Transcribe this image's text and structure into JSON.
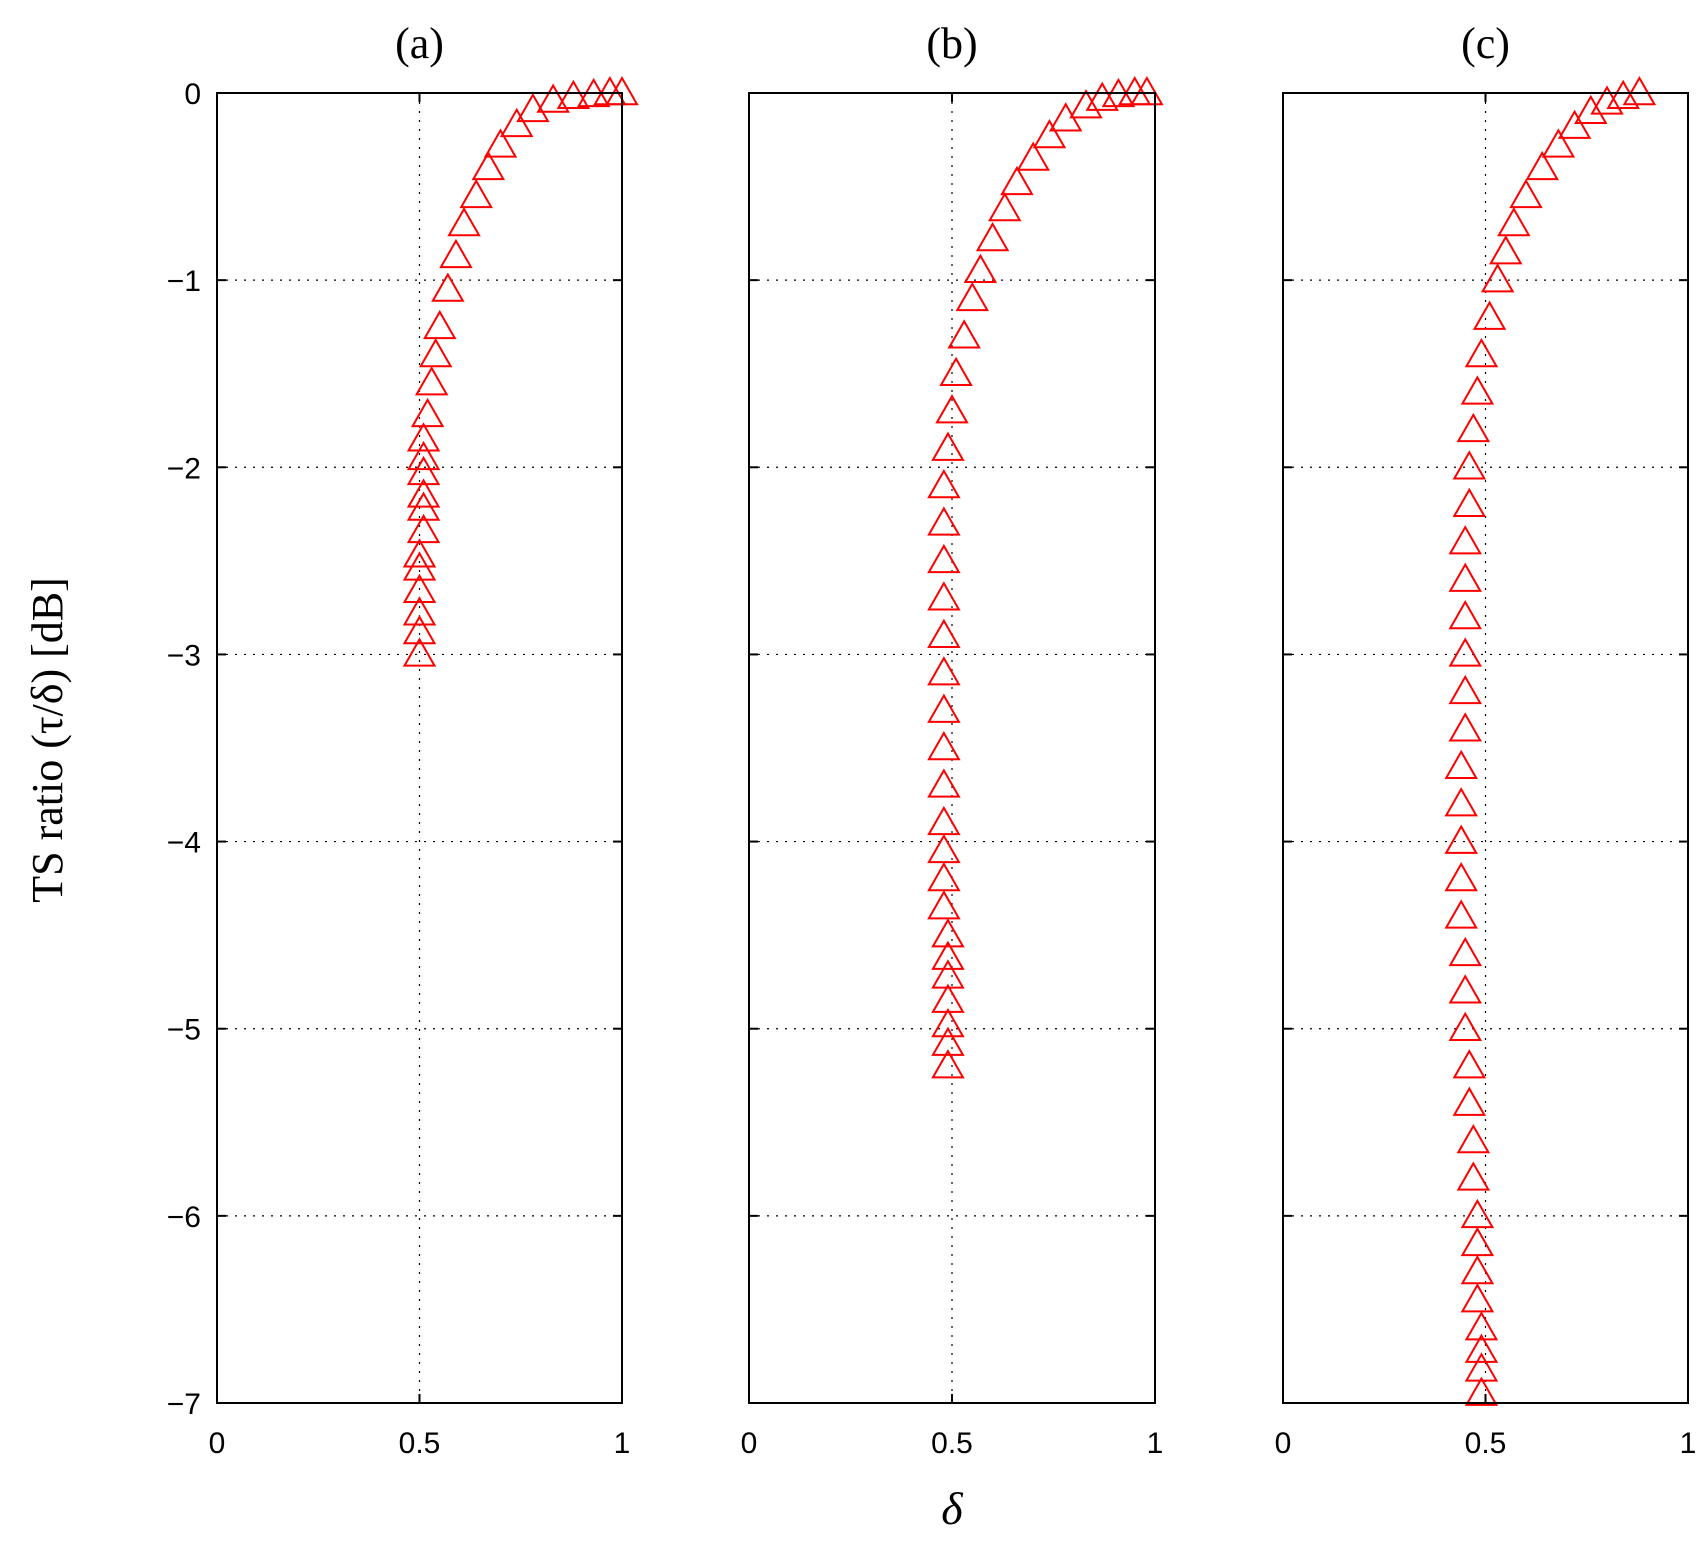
{
  "chart_data": [
    {
      "type": "scatter",
      "title": "(a)",
      "xlim": [
        0,
        1
      ],
      "ylim": [
        -7,
        0
      ],
      "xticks": [
        "0",
        "0.5",
        "1"
      ],
      "yticks": [
        "0",
        "−1",
        "−2",
        "−3",
        "−4",
        "−5",
        "−6",
        "−7"
      ],
      "grid": true,
      "marker": "triangle-open",
      "color": "#ff0000",
      "points": [
        [
          0.5,
          -3.0
        ],
        [
          0.5,
          -2.88
        ],
        [
          0.5,
          -2.78
        ],
        [
          0.5,
          -2.66
        ],
        [
          0.5,
          -2.54
        ],
        [
          0.5,
          -2.47
        ],
        [
          0.51,
          -2.34
        ],
        [
          0.51,
          -2.22
        ],
        [
          0.51,
          -2.15
        ],
        [
          0.51,
          -2.03
        ],
        [
          0.51,
          -1.95
        ],
        [
          0.51,
          -1.85
        ],
        [
          0.52,
          -1.72
        ],
        [
          0.53,
          -1.55
        ],
        [
          0.54,
          -1.4
        ],
        [
          0.55,
          -1.25
        ],
        [
          0.57,
          -1.05
        ],
        [
          0.59,
          -0.87
        ],
        [
          0.61,
          -0.7
        ],
        [
          0.64,
          -0.55
        ],
        [
          0.67,
          -0.4
        ],
        [
          0.7,
          -0.28
        ],
        [
          0.74,
          -0.17
        ],
        [
          0.78,
          -0.09
        ],
        [
          0.83,
          -0.04
        ],
        [
          0.88,
          -0.02
        ],
        [
          0.93,
          -0.01
        ],
        [
          0.97,
          0.0
        ],
        [
          1.0,
          0.0
        ]
      ]
    },
    {
      "type": "scatter",
      "title": "(b)",
      "xlim": [
        0,
        1
      ],
      "ylim": [
        -7,
        0
      ],
      "xticks": [
        "0",
        "0.5",
        "1"
      ],
      "grid": true,
      "marker": "triangle-open",
      "color": "#ff0000",
      "points": [
        [
          0.49,
          -5.2
        ],
        [
          0.49,
          -5.08
        ],
        [
          0.49,
          -4.98
        ],
        [
          0.49,
          -4.85
        ],
        [
          0.49,
          -4.72
        ],
        [
          0.49,
          -4.62
        ],
        [
          0.49,
          -4.5
        ],
        [
          0.48,
          -4.35
        ],
        [
          0.48,
          -4.2
        ],
        [
          0.48,
          -4.05
        ],
        [
          0.48,
          -3.9
        ],
        [
          0.48,
          -3.7
        ],
        [
          0.48,
          -3.5
        ],
        [
          0.48,
          -3.3
        ],
        [
          0.48,
          -3.1
        ],
        [
          0.48,
          -2.9
        ],
        [
          0.48,
          -2.7
        ],
        [
          0.48,
          -2.5
        ],
        [
          0.48,
          -2.3
        ],
        [
          0.48,
          -2.1
        ],
        [
          0.49,
          -1.9
        ],
        [
          0.5,
          -1.7
        ],
        [
          0.51,
          -1.5
        ],
        [
          0.53,
          -1.3
        ],
        [
          0.55,
          -1.1
        ],
        [
          0.57,
          -0.95
        ],
        [
          0.6,
          -0.78
        ],
        [
          0.63,
          -0.62
        ],
        [
          0.66,
          -0.48
        ],
        [
          0.7,
          -0.35
        ],
        [
          0.74,
          -0.23
        ],
        [
          0.78,
          -0.14
        ],
        [
          0.83,
          -0.07
        ],
        [
          0.87,
          -0.03
        ],
        [
          0.91,
          -0.01
        ],
        [
          0.95,
          0.0
        ],
        [
          0.98,
          0.0
        ]
      ]
    },
    {
      "type": "scatter",
      "title": "(c)",
      "xlim": [
        0,
        1
      ],
      "ylim": [
        -7,
        0
      ],
      "xticks": [
        "0",
        "0.5",
        "1"
      ],
      "grid": true,
      "marker": "triangle-open",
      "color": "#ff0000",
      "points": [
        [
          0.49,
          -6.95
        ],
        [
          0.49,
          -6.82
        ],
        [
          0.49,
          -6.72
        ],
        [
          0.49,
          -6.6
        ],
        [
          0.48,
          -6.45
        ],
        [
          0.48,
          -6.3
        ],
        [
          0.48,
          -6.15
        ],
        [
          0.48,
          -6.0
        ],
        [
          0.47,
          -5.8
        ],
        [
          0.47,
          -5.6
        ],
        [
          0.46,
          -5.4
        ],
        [
          0.46,
          -5.2
        ],
        [
          0.45,
          -5.0
        ],
        [
          0.45,
          -4.8
        ],
        [
          0.45,
          -4.6
        ],
        [
          0.44,
          -4.4
        ],
        [
          0.44,
          -4.2
        ],
        [
          0.44,
          -4.0
        ],
        [
          0.44,
          -3.8
        ],
        [
          0.44,
          -3.6
        ],
        [
          0.45,
          -3.4
        ],
        [
          0.45,
          -3.2
        ],
        [
          0.45,
          -3.0
        ],
        [
          0.45,
          -2.8
        ],
        [
          0.45,
          -2.6
        ],
        [
          0.45,
          -2.4
        ],
        [
          0.46,
          -2.2
        ],
        [
          0.46,
          -2.0
        ],
        [
          0.47,
          -1.8
        ],
        [
          0.48,
          -1.6
        ],
        [
          0.49,
          -1.4
        ],
        [
          0.51,
          -1.2
        ],
        [
          0.53,
          -1.0
        ],
        [
          0.55,
          -0.85
        ],
        [
          0.57,
          -0.7
        ],
        [
          0.6,
          -0.55
        ],
        [
          0.64,
          -0.4
        ],
        [
          0.68,
          -0.28
        ],
        [
          0.72,
          -0.18
        ],
        [
          0.76,
          -0.1
        ],
        [
          0.8,
          -0.05
        ],
        [
          0.84,
          -0.02
        ],
        [
          0.88,
          0.0
        ]
      ]
    }
  ],
  "ylabel": "TS ratio (τ/δ) [dB]",
  "xlabel": "δ"
}
